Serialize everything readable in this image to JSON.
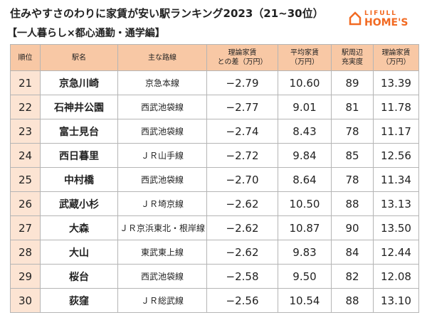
{
  "header": {
    "title": "住みやすさのわりに家賃が安い駅ランキング2023（21~30位）",
    "subtitle": "【一人暮らし×都心通勤・通学編】"
  },
  "logo": {
    "top": "LIFULL",
    "bottom": "HOME'S"
  },
  "table": {
    "columns": [
      [
        "順位"
      ],
      [
        "駅名"
      ],
      [
        "主な路線"
      ],
      [
        "理論家賃",
        "との差（万円）"
      ],
      [
        "平均家賃",
        "（万円）"
      ],
      [
        "駅周辺",
        "充実度"
      ],
      [
        "理論家賃",
        "（万円）"
      ]
    ],
    "rows": [
      [
        "21",
        "京急川崎",
        "京急本線",
        "−2.79",
        "10.60",
        "89",
        "13.39"
      ],
      [
        "22",
        "石神井公園",
        "西武池袋線",
        "−2.77",
        "9.01",
        "81",
        "11.78"
      ],
      [
        "23",
        "富士見台",
        "西武池袋線",
        "−2.74",
        "8.43",
        "78",
        "11.17"
      ],
      [
        "24",
        "西日暮里",
        "ＪＲ山手線",
        "−2.72",
        "9.84",
        "85",
        "12.56"
      ],
      [
        "25",
        "中村橋",
        "西武池袋線",
        "−2.70",
        "8.64",
        "78",
        "11.34"
      ],
      [
        "26",
        "武蔵小杉",
        "ＪＲ埼京線",
        "−2.62",
        "10.50",
        "88",
        "13.13"
      ],
      [
        "27",
        "大森",
        "ＪＲ京浜東北・根岸線",
        "−2.62",
        "10.87",
        "90",
        "13.50"
      ],
      [
        "28",
        "大山",
        "東武東上線",
        "−2.62",
        "9.83",
        "84",
        "12.44"
      ],
      [
        "29",
        "桜台",
        "西武池袋線",
        "−2.58",
        "9.50",
        "82",
        "12.08"
      ],
      [
        "30",
        "荻窪",
        "ＪＲ総武線",
        "−2.56",
        "10.54",
        "88",
        "13.10"
      ]
    ]
  }
}
